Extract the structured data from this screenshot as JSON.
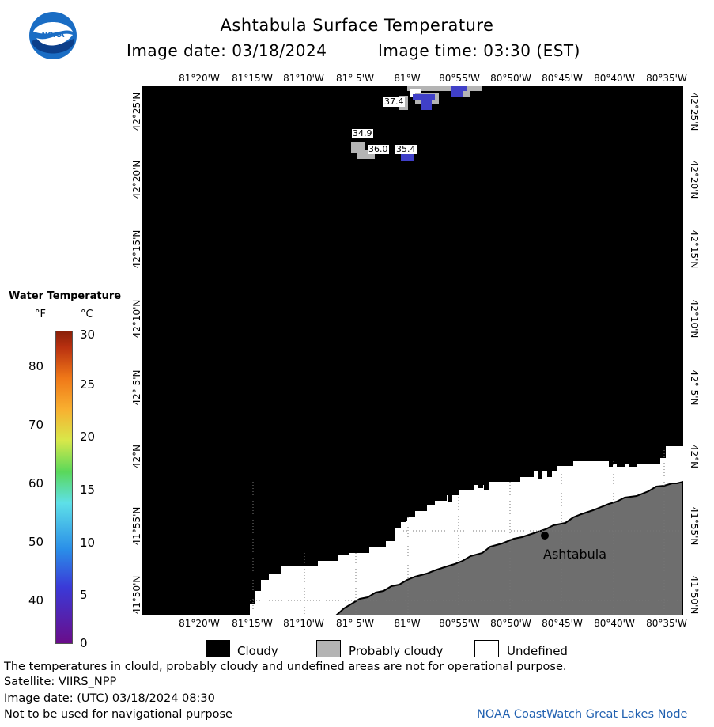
{
  "header": {
    "title": "Ashtabula Surface Temperature",
    "image_date": "Image date: 03/18/2024",
    "image_time": "Image time: 03:30 (EST)"
  },
  "logo": {
    "text": "NOAA",
    "icon": "noaa-logo-icon"
  },
  "map": {
    "lon_labels": [
      "81°20'W",
      "81°15'W",
      "81°10'W",
      "81° 5'W",
      "81°W",
      "80°55'W",
      "80°50'W",
      "80°45'W",
      "80°40'W",
      "80°35'W"
    ],
    "lat_labels": [
      "42°25'N",
      "42°20'N",
      "42°15'N",
      "42°10'N",
      "42° 5'N",
      "42°N",
      "41°55'N",
      "41°50'N"
    ],
    "city": "Ashtabula",
    "temps": [
      "37.4",
      "34.9",
      "36.0",
      "35.4"
    ],
    "colors": {
      "cloudy": "#000000",
      "probably_cloudy": "#b4b4b4",
      "undefined": "#ffffff",
      "land": "#6e6e6e",
      "cold_water": "#4040c8"
    }
  },
  "legend": {
    "title": "Water Temperature",
    "unit_f": "°F",
    "unit_c": "°C",
    "f_ticks": [
      "80",
      "70",
      "60",
      "50",
      "40"
    ],
    "c_ticks": [
      "30",
      "25",
      "20",
      "15",
      "10",
      "5",
      "0"
    ]
  },
  "key": {
    "cloudy": "Cloudy",
    "probably_cloudy": "Probably cloudy",
    "undefined": "Undefined"
  },
  "footer": {
    "disclaimer": "The temperatures in clould, probably cloudy and undefined areas are not for operational purpose.",
    "satellite": "Satellite: VIIRS_NPP",
    "utc_date": "Image date: (UTC) 03/18/2024  08:30",
    "nav_warning": "Not to be used for navigational purpose",
    "credit": "NOAA CoastWatch Great Lakes Node"
  }
}
